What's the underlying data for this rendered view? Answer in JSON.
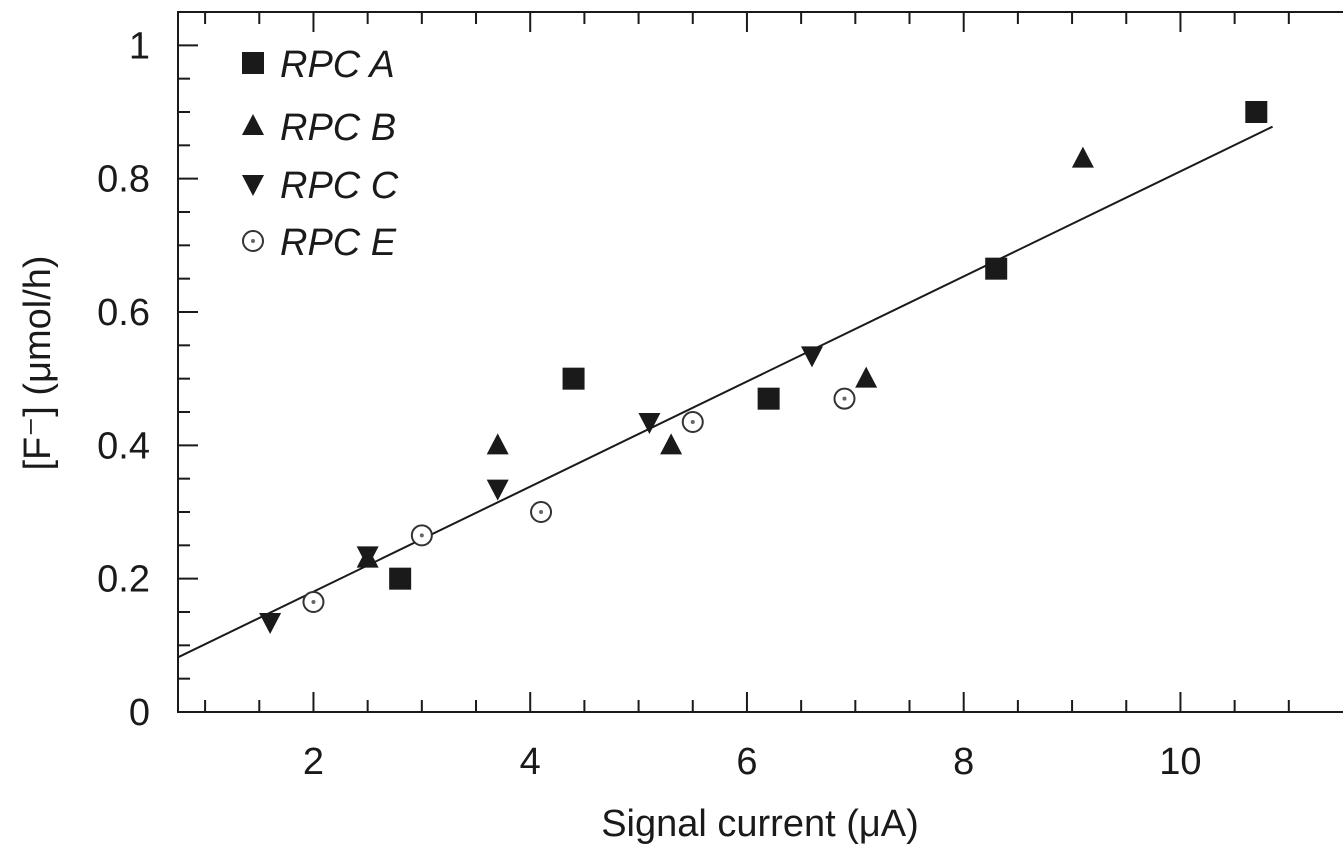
{
  "chart_data": {
    "type": "scatter",
    "xlabel": "Signal current (μA)",
    "ylabel": "[F⁻] (μmol/h)",
    "xlim": [
      0.75,
      11.5
    ],
    "ylim": [
      0,
      1.05
    ],
    "x_ticks": [
      2,
      4,
      6,
      8,
      10
    ],
    "y_ticks": [
      0,
      0.2,
      0.4,
      0.6,
      0.8,
      1
    ],
    "y_tick_labels": [
      "0",
      "0.2",
      "0.4",
      "0.6",
      "0.8",
      "1"
    ],
    "grid": false,
    "legend_position": "top-left",
    "series": [
      {
        "name": "RPC A",
        "marker": "square",
        "color": "#1a1a1a",
        "points": [
          [
            2.8,
            0.2
          ],
          [
            4.4,
            0.5
          ],
          [
            6.2,
            0.47
          ],
          [
            8.3,
            0.665
          ],
          [
            10.7,
            0.9
          ]
        ]
      },
      {
        "name": "RPC B",
        "marker": "triangle-up",
        "color": "#1a1a1a",
        "points": [
          [
            2.5,
            0.23
          ],
          [
            3.7,
            0.4
          ],
          [
            5.3,
            0.4
          ],
          [
            7.1,
            0.5
          ],
          [
            9.1,
            0.83
          ]
        ]
      },
      {
        "name": "RPC C",
        "marker": "triangle-down",
        "color": "#1a1a1a",
        "points": [
          [
            1.6,
            0.135
          ],
          [
            2.5,
            0.235
          ],
          [
            3.7,
            0.335
          ],
          [
            5.1,
            0.435
          ],
          [
            6.6,
            0.535
          ]
        ]
      },
      {
        "name": "RPC E",
        "marker": "circle-open",
        "color": "#1a1a1a",
        "points": [
          [
            2.0,
            0.165
          ],
          [
            3.0,
            0.265
          ],
          [
            4.1,
            0.3
          ],
          [
            5.5,
            0.435
          ],
          [
            6.9,
            0.47
          ]
        ]
      }
    ],
    "fit_line": {
      "x": [
        0.75,
        10.85
      ],
      "y": [
        0.082,
        0.878
      ]
    }
  }
}
